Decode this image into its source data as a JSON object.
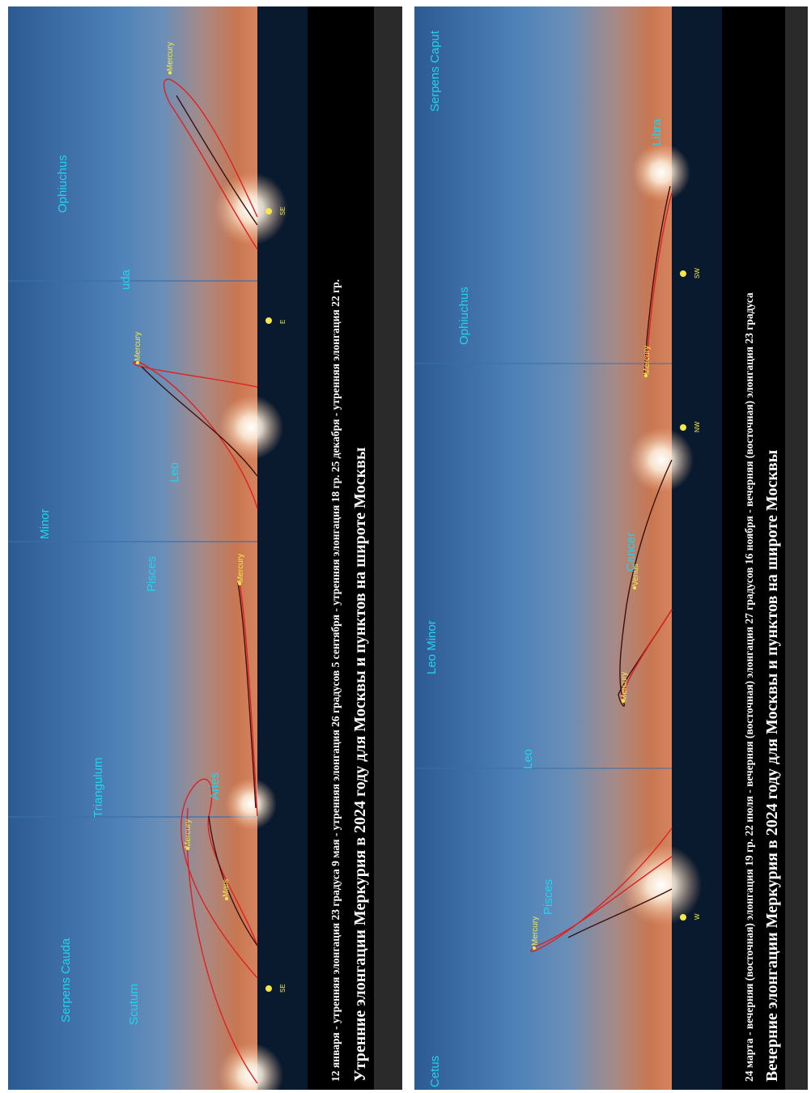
{
  "left_panel": {
    "caption_dates": "12 января - утренняя элонгация 23 градуса     9 мая - утренняя элонгация 26 градусов   5 сентября - утренняя элонгация 18 гр.   25 декабря - утренняя элонгация 22 гр.",
    "caption_title": "Утренние элонгации Меркурия в 2024 году для Москвы и пунктов на широте  Москвы",
    "constellations": [
      "Serpens Cauda",
      "Scutum",
      "Triangulum",
      "Aries",
      "Pisces",
      "Minor",
      "Leo",
      "uda",
      "Ophiuchus"
    ],
    "planets": [
      "Mercury",
      "Mars",
      "Mercury",
      "Mercury",
      "Mercury"
    ],
    "compass": [
      "SE",
      "E",
      "SE"
    ]
  },
  "right_panel": {
    "caption_dates": "24 марта - вечерняя (восточная) элонгация 19 гр.    22 июля - вечерняя (восточная) элонгация 27 градусов     16 ноября - вечерняя (восточная) элонгация 23 градуса",
    "caption_title": "Вечерние элонгации Меркурия в 2024 году для Москвы и пунктов на широте  Москвы",
    "constellations": [
      "Cetus",
      "Pisces",
      "Leo",
      "Leo Minor",
      "Cancer",
      "Ophiuchus",
      "Libra",
      "Serpens Caput"
    ],
    "planets": [
      "Mercury",
      "Mercury",
      "Venus",
      "Mercury"
    ],
    "compass": [
      "W",
      "NW",
      "SW"
    ]
  },
  "colors": {
    "sky_top": "#2c5a92",
    "sky_mid": "#4e82b8",
    "horizon_warm": "#c97750",
    "ground": "#0a1a2e",
    "caption_bg": "#000000",
    "label_cyan": "#22d3ee",
    "planet_yellow": "#f4e84a",
    "path_red": "#e02020",
    "path_dark": "#3a1010"
  }
}
